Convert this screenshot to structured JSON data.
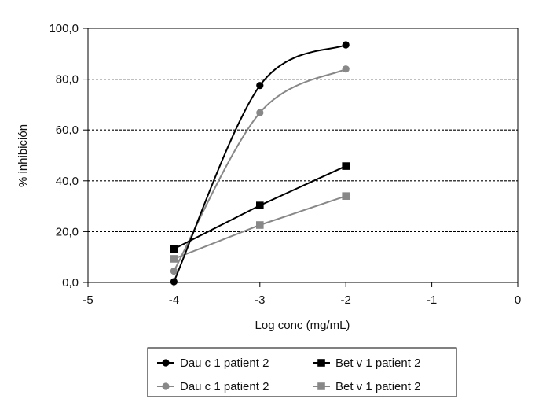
{
  "chart_data": {
    "type": "line",
    "title": "",
    "xlabel": "Log conc (mg/mL)",
    "ylabel": "% inhibición",
    "xlim": [
      -5,
      0
    ],
    "ylim": [
      0,
      100
    ],
    "x_ticks": [
      -5,
      -4,
      -3,
      -2,
      -1,
      0
    ],
    "x_tick_labels": [
      "-5",
      "-4",
      "-3",
      "-2",
      "-1",
      "0"
    ],
    "y_ticks": [
      0,
      20,
      40,
      60,
      80,
      100
    ],
    "y_tick_labels": [
      "0,0",
      "20,0",
      "40,0",
      "60,0",
      "80,0",
      "100,0"
    ],
    "grid": "horizontal dashed",
    "legend_position": "bottom",
    "series": [
      {
        "name": "Dau c 1 patient 2",
        "color": "#000000",
        "marker": "circle",
        "smooth": true,
        "x": [
          -4,
          -3,
          -2
        ],
        "y": [
          0.3,
          77.5,
          93.5
        ]
      },
      {
        "name": "Bet v 1 patient 2",
        "color": "#000000",
        "marker": "square",
        "smooth": false,
        "x": [
          -4,
          -3,
          -2
        ],
        "y": [
          13.2,
          30.3,
          45.8
        ]
      },
      {
        "name": "Dau c 1 patient 2",
        "color": "#888888",
        "marker": "circle",
        "smooth": true,
        "x": [
          -4,
          -3,
          -2
        ],
        "y": [
          4.5,
          66.8,
          84.0
        ]
      },
      {
        "name": "Bet v 1 patient 2",
        "color": "#888888",
        "marker": "square",
        "smooth": false,
        "x": [
          -4,
          -3,
          -2
        ],
        "y": [
          9.3,
          22.6,
          34.0
        ]
      }
    ]
  }
}
